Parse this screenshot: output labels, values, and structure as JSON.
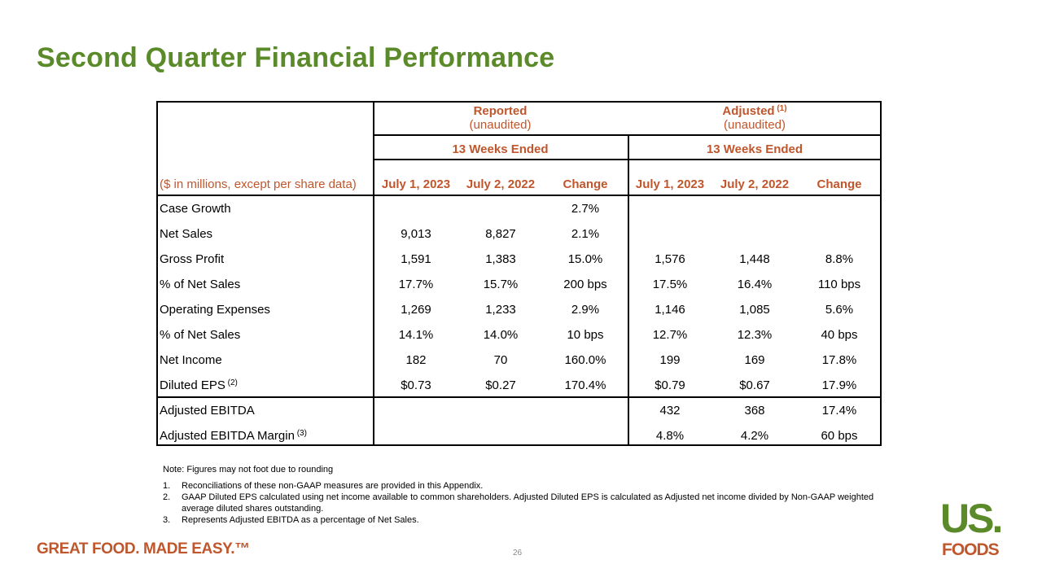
{
  "title": "Second Quarter Financial Performance",
  "table": {
    "groups": [
      {
        "label": "Reported",
        "sup": "",
        "sublabel": "(unaudited)",
        "period": "13 Weeks Ended"
      },
      {
        "label": "Adjusted",
        "sup": "(1)",
        "sublabel": "(unaudited)",
        "period": "13 Weeks Ended"
      }
    ],
    "unit_label": "($ in millions, except per share data)",
    "columns": [
      "July 1, 2023",
      "July 2, 2022",
      "Change",
      "July 1, 2023",
      "July 2, 2022",
      "Change"
    ],
    "rows": [
      {
        "label": "Case Growth",
        "sup": "",
        "values": [
          "",
          "",
          "2.7%",
          "",
          "",
          ""
        ]
      },
      {
        "label": "Net Sales",
        "sup": "",
        "values": [
          "9,013",
          "8,827",
          "2.1%",
          "",
          "",
          ""
        ]
      },
      {
        "label": "Gross Profit",
        "sup": "",
        "values": [
          "1,591",
          "1,383",
          "15.0%",
          "1,576",
          "1,448",
          "8.8%"
        ]
      },
      {
        "label": "% of Net Sales",
        "sup": "",
        "values": [
          "17.7%",
          "15.7%",
          "200 bps",
          "17.5%",
          "16.4%",
          "110 bps"
        ]
      },
      {
        "label": "Operating Expenses",
        "sup": "",
        "values": [
          "1,269",
          "1,233",
          "2.9%",
          "1,146",
          "1,085",
          "5.6%"
        ]
      },
      {
        "label": "% of Net Sales",
        "sup": "",
        "values": [
          "14.1%",
          "14.0%",
          "10 bps",
          "12.7%",
          "12.3%",
          "40 bps"
        ]
      },
      {
        "label": "Net Income",
        "sup": "",
        "values": [
          "182",
          "70",
          "160.0%",
          "199",
          "169",
          "17.8%"
        ]
      },
      {
        "label": "Diluted EPS",
        "sup": "(2)",
        "values": [
          "$0.73",
          "$0.27",
          "170.4%",
          "$0.79",
          "$0.67",
          "17.9%"
        ]
      },
      {
        "label": "Adjusted EBITDA",
        "sup": "",
        "values": [
          "",
          "",
          "",
          "432",
          "368",
          "17.4%"
        ]
      },
      {
        "label": "Adjusted EBITDA Margin",
        "sup": "(3)",
        "values": [
          "",
          "",
          "",
          "4.8%",
          "4.2%",
          "60 bps"
        ]
      }
    ]
  },
  "notes": {
    "intro": "Note: Figures may not foot due to rounding",
    "items": [
      {
        "num": "1.",
        "text": "Reconciliations of these non-GAAP measures are provided in this Appendix."
      },
      {
        "num": "2.",
        "text": "GAAP Diluted EPS calculated using net income available to common shareholders. Adjusted Diluted EPS is calculated as Adjusted net income divided by Non-GAAP  weighted average diluted shares outstanding."
      },
      {
        "num": "3.",
        "text": "Represents Adjusted EBITDA as a percentage of Net Sales."
      }
    ]
  },
  "footer": {
    "tagline": "GREAT FOOD. MADE EASY.™",
    "page_number": "26",
    "logo_text_top": "US.",
    "logo_text_bottom": "FOODS"
  },
  "colors": {
    "title_green": "#5b8a2a",
    "accent_orange": "#c0562c",
    "logo_green": "#5b8a2a"
  }
}
